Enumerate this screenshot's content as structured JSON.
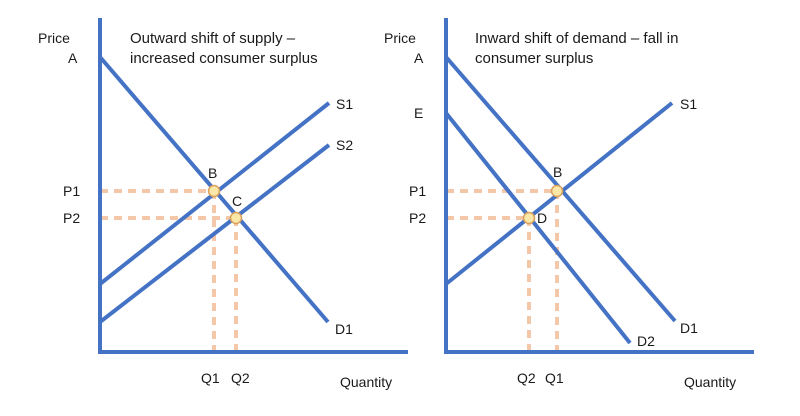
{
  "left": {
    "title_line1": "Outward shift of supply –",
    "title_line2": "increased consumer surplus",
    "axis_y_label": "Price",
    "axis_x_label": "Quantity",
    "point_labels": {
      "A": "A",
      "B": "B",
      "C": "C"
    },
    "curve_labels": {
      "S1": "S1",
      "S2": "S2",
      "D1": "D1"
    },
    "price_ticks": {
      "P1": "P1",
      "P2": "P2"
    },
    "quantity_ticks": {
      "Q1": "Q1",
      "Q2": "Q2"
    }
  },
  "right": {
    "title_line1": "Inward shift of demand – fall in",
    "title_line2": "consumer surplus",
    "axis_y_label": "Price",
    "axis_x_label": "Quantity",
    "point_labels": {
      "A": "A",
      "E": "E",
      "B": "B",
      "D": "D"
    },
    "curve_labels": {
      "S1": "S1",
      "D1": "D1",
      "D2": "D2"
    },
    "price_ticks": {
      "P1": "P1",
      "P2": "P2"
    },
    "quantity_ticks": {
      "Q2": "Q2",
      "Q1": "Q1"
    }
  },
  "colors": {
    "curve": "#4472c4",
    "guide": "#f4c7a8",
    "point_fill": "#fbe7a8",
    "point_stroke": "#d9a05b",
    "text": "#1a1a1a"
  }
}
